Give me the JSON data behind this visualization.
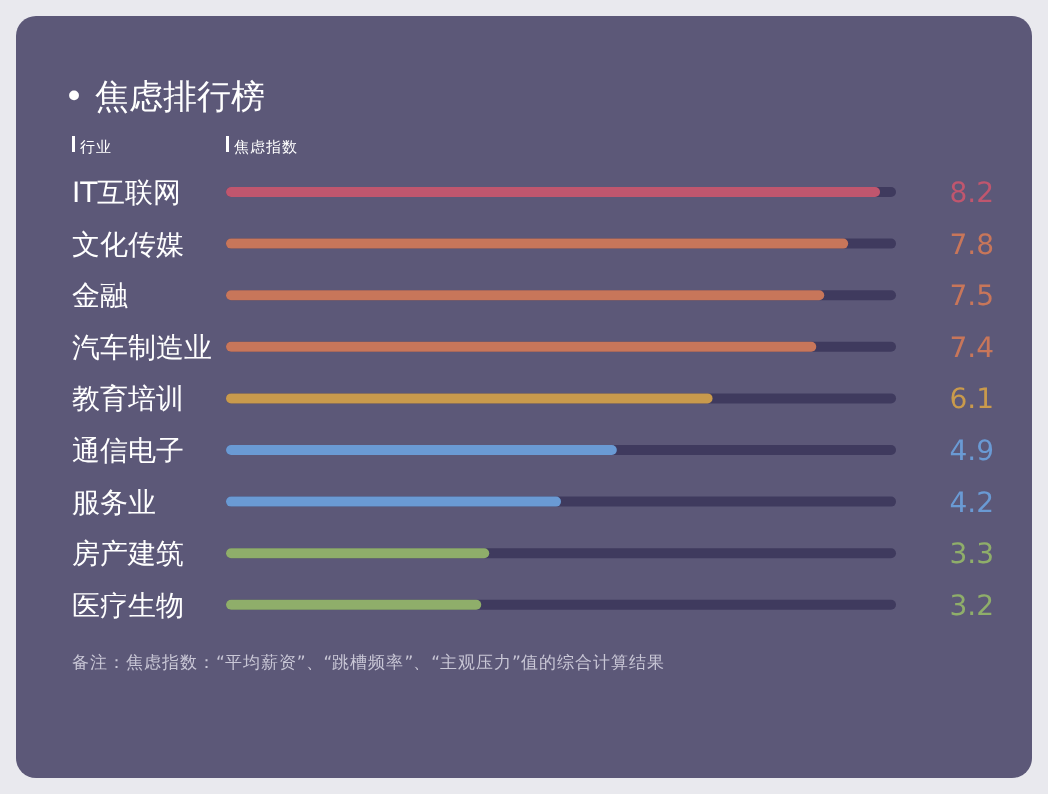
{
  "chart_data": {
    "type": "bar",
    "orientation": "horizontal",
    "title": "• 焦虑排行榜",
    "ylabel": "行业",
    "xlabel": "焦虑指数",
    "categories": [
      "IT互联网",
      "文化传媒",
      "金融",
      "汽车制造业",
      "教育培训",
      "通信电子",
      "服务业",
      "房产建筑",
      "医疗生物"
    ],
    "values": [
      8.2,
      7.8,
      7.5,
      7.4,
      6.1,
      4.9,
      4.2,
      3.3,
      3.2
    ],
    "colors": [
      "#c0566e",
      "#c8765a",
      "#c8765a",
      "#c8765a",
      "#c99a4c",
      "#6a9ad4",
      "#6a9ad4",
      "#8fae6a",
      "#8fae6a"
    ],
    "xlim": [
      0,
      8.4
    ],
    "data_labels": true,
    "annotations": [
      "备注：焦虑指数：“平均薪资”、“跳槽频率”、“主观压力”值的综合计算结果"
    ]
  }
}
